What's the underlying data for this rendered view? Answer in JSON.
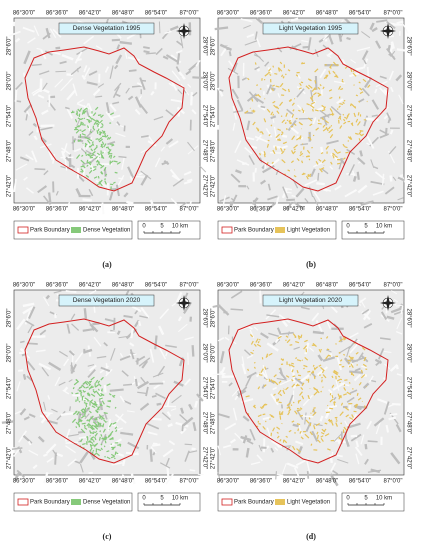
{
  "lon_labels": [
    "86°30'0\"",
    "86°36'0\"",
    "86°42'0\"",
    "86°48'0\"",
    "86°54'0\"",
    "87°0'0\""
  ],
  "lat_labels": [
    "28°6'0\"",
    "28°0'0\"",
    "27°54'0\"",
    "27°48'0\"",
    "27°42'0\""
  ],
  "boundary_label": "Park Boundary",
  "scale_labels": [
    "0",
    "5",
    "10 km"
  ],
  "panels": [
    {
      "title": "Dense Vegetation 1995",
      "legend": "Dense Vegetation",
      "caption": "(a)",
      "color": "#86c97a"
    },
    {
      "title": "Light Vegetation 1995",
      "legend": "Light Vegetation",
      "caption": "(b)",
      "color": "#e6c35a"
    },
    {
      "title": "Dense Vegetation 2020",
      "legend": "Dense Vegetation",
      "caption": "(c)",
      "color": "#86c97a"
    },
    {
      "title": "Light Vegetation 2020",
      "legend": "Light Vegetation",
      "caption": "(d)",
      "color": "#e6c35a"
    }
  ]
}
